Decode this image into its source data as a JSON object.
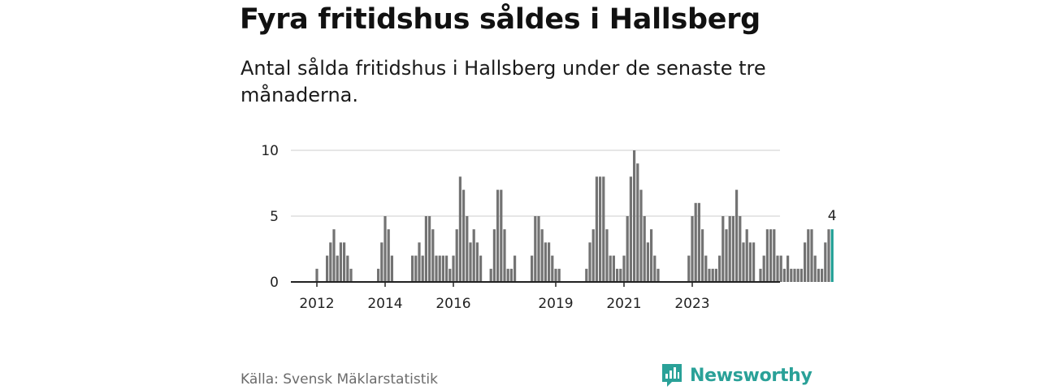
{
  "header": {
    "title": "Fyra fritidshus såldes i Hallsberg",
    "subtitle": "Antal sålda fritidshus i Hallsberg under de senaste tre månaderna."
  },
  "footer": {
    "source": "Källa: Svensk Mäklarstatistik",
    "brand": "Newsworthy"
  },
  "colors": {
    "bar": "#737373",
    "highlight": "#1e9e94",
    "grid": "#dddddd",
    "axis": "#222222",
    "brand": "#2aa198"
  },
  "chart_data": {
    "type": "bar",
    "title": "Fyra fritidshus såldes i Hallsberg",
    "subtitle": "Antal sålda fritidshus i Hallsberg under de senaste tre månaderna.",
    "xlabel": "",
    "ylabel": "",
    "ylim": [
      0,
      10
    ],
    "y_ticks": [
      0,
      5,
      10
    ],
    "x_ticks": [
      {
        "label": "2012",
        "index": 2
      },
      {
        "label": "2014",
        "index": 22
      },
      {
        "label": "2016",
        "index": 42
      },
      {
        "label": "2019",
        "index": 72
      },
      {
        "label": "2021",
        "index": 92
      },
      {
        "label": "2023",
        "index": 112
      }
    ],
    "grid": true,
    "last_value_label": "4",
    "categories_note": "one bar per month, ending at the latest month",
    "values": [
      0,
      0,
      1,
      0,
      0,
      2,
      3,
      4,
      2,
      3,
      3,
      2,
      1,
      0,
      0,
      0,
      0,
      0,
      0,
      0,
      1,
      3,
      5,
      4,
      2,
      0,
      0,
      0,
      0,
      0,
      2,
      2,
      3,
      2,
      5,
      5,
      4,
      2,
      2,
      2,
      2,
      1,
      2,
      4,
      8,
      7,
      5,
      3,
      4,
      3,
      2,
      0,
      0,
      1,
      4,
      7,
      7,
      4,
      1,
      1,
      2,
      0,
      0,
      0,
      0,
      2,
      5,
      5,
      4,
      3,
      3,
      2,
      1,
      1,
      0,
      0,
      0,
      0,
      0,
      0,
      0,
      1,
      3,
      4,
      8,
      8,
      8,
      4,
      2,
      2,
      1,
      1,
      2,
      5,
      8,
      10,
      9,
      7,
      5,
      3,
      4,
      2,
      1,
      0,
      0,
      0,
      0,
      0,
      0,
      0,
      0,
      2,
      5,
      6,
      6,
      4,
      2,
      1,
      1,
      1,
      2,
      5,
      4,
      5,
      5,
      7,
      5,
      3,
      4,
      3,
      3,
      0,
      1,
      2,
      4,
      4,
      4,
      2,
      2,
      1,
      2,
      1,
      1,
      1,
      1,
      3,
      4,
      4,
      2,
      1,
      1,
      3,
      4,
      4
    ]
  }
}
